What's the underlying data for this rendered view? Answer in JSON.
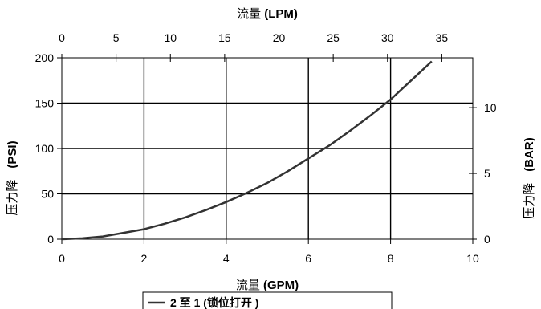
{
  "chart_data": {
    "type": "line",
    "grid": true,
    "x_bottom": {
      "label_prefix": "流量 ",
      "label_unit": "(GPM)",
      "range": [
        0,
        10
      ],
      "ticks": [
        "0",
        "2",
        "4",
        "6",
        "8",
        "10"
      ]
    },
    "x_top": {
      "label_prefix": "流量 ",
      "label_unit": "(LPM)",
      "range": [
        0,
        37.854
      ],
      "ticks": [
        "0",
        "5",
        "10",
        "15",
        "20",
        "25",
        "30",
        "35"
      ]
    },
    "y_left": {
      "label_prefix": "压力降",
      "label_unit": "(PSI)",
      "range": [
        0,
        200
      ],
      "ticks": [
        "0",
        "50",
        "100",
        "150",
        "200"
      ]
    },
    "y_right": {
      "label_prefix": "压力降",
      "label_unit": "(BAR)",
      "range": [
        0,
        13.79
      ],
      "ticks": [
        "0",
        "5",
        "10"
      ]
    },
    "series": [
      {
        "name": "2 至 1 (锁位打开 )",
        "x": [
          0,
          0.5,
          1,
          1.5,
          2,
          2.5,
          3,
          3.5,
          4,
          4.5,
          5,
          5.5,
          6,
          6.5,
          7,
          7.5,
          8,
          8.5,
          9
        ],
        "y": [
          0,
          1,
          3,
          7,
          11,
          17,
          24,
          32,
          41,
          51,
          62,
          75,
          89,
          103,
          119,
          136,
          154,
          175,
          196
        ]
      }
    ],
    "legend": {
      "placement": "bottom-center"
    }
  }
}
